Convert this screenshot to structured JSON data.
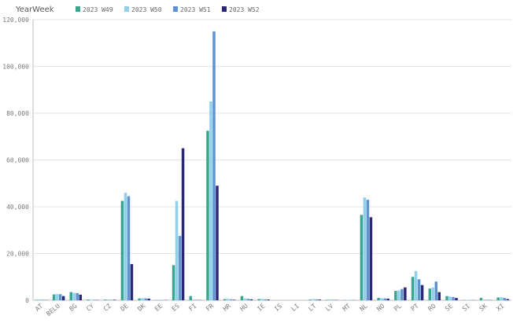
{
  "chart_data": {
    "type": "bar",
    "legend": {
      "title": "YearWeek",
      "placement": "top-left"
    },
    "categories": [
      "AT",
      "BELU",
      "BG",
      "CY",
      "CZ",
      "DE",
      "DK",
      "EE",
      "ES",
      "FI",
      "FR",
      "HR",
      "HU",
      "IE",
      "IS",
      "LI",
      "LT",
      "LV",
      "MT",
      "NL",
      "NO",
      "PL",
      "PT",
      "RO",
      "SE",
      "SI",
      "SK",
      "XI"
    ],
    "series": [
      {
        "name": "2023 W49",
        "color": "#3aa58f",
        "values": [
          200,
          2500,
          3500,
          300,
          300,
          42500,
          800,
          100,
          15000,
          1800,
          72500,
          500,
          1800,
          500,
          0,
          0,
          300,
          200,
          100,
          36500,
          1000,
          4000,
          10000,
          5000,
          1800,
          100,
          1000,
          1200
        ]
      },
      {
        "name": "2023 W50",
        "color": "#8fd0ee",
        "values": [
          300,
          2700,
          3200,
          200,
          300,
          46000,
          900,
          200,
          42500,
          300,
          85000,
          600,
          800,
          600,
          0,
          0,
          500,
          300,
          100,
          44000,
          900,
          4200,
          12500,
          5500,
          1600,
          100,
          300,
          1300
        ]
      },
      {
        "name": "2023 W51",
        "color": "#5f93cf",
        "values": [
          200,
          2600,
          3100,
          200,
          200,
          44500,
          800,
          100,
          27500,
          200,
          115000,
          400,
          600,
          400,
          0,
          0,
          400,
          200,
          100,
          43000,
          800,
          4800,
          9000,
          8000,
          1400,
          100,
          200,
          1000
        ]
      },
      {
        "name": "2023 W52",
        "color": "#2a2777",
        "values": [
          100,
          1800,
          2400,
          100,
          200,
          15500,
          700,
          100,
          65000,
          100,
          49000,
          200,
          400,
          300,
          0,
          0,
          300,
          100,
          50,
          35500,
          700,
          5500,
          6500,
          3500,
          1000,
          50,
          100,
          500
        ]
      }
    ],
    "y_ticks": [
      "0",
      "20,000",
      "40,000",
      "60,000",
      "80,000",
      "100,000",
      "120,000"
    ],
    "ylim": [
      0,
      120000
    ],
    "grid": true
  }
}
